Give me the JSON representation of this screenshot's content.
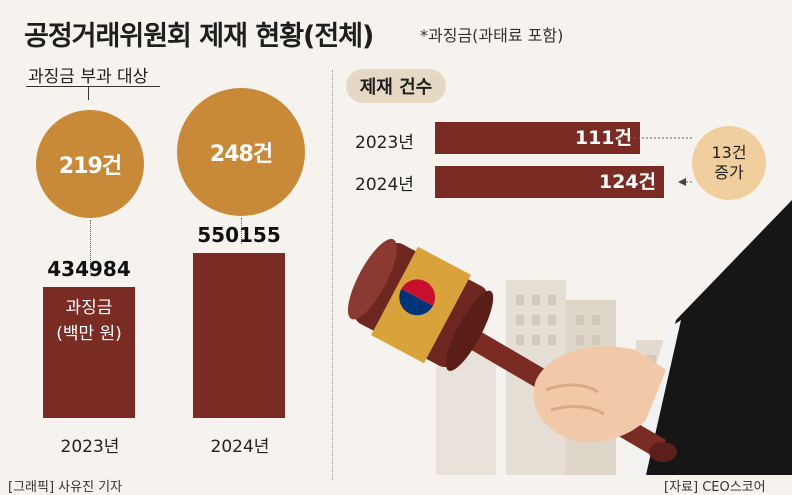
{
  "header": {
    "title": "공정거래위원회 제재 현황(전체)",
    "note": "*과징금(과태료 포함)"
  },
  "left": {
    "subtitle": "과징금 부과 대상",
    "bar_inner_label": [
      "과징금",
      "(백만 원)"
    ]
  },
  "right": {
    "title": "제재 건수",
    "diff_label": [
      "13건",
      "증가"
    ]
  },
  "footer": {
    "left": "[그래픽] 사유진 기자",
    "right": "[자료] CEO스코어"
  },
  "colors": {
    "bar": "#7a2b24",
    "circle": "#c88a38",
    "pill": "#e6d9c3",
    "diff_circle": "#f0ce9d",
    "gavel_band": "#d9a23a"
  },
  "chart_data": [
    {
      "type": "bar",
      "title": "과징금 부과 대상",
      "categories": [
        "2023년",
        "2024년"
      ],
      "series": [
        {
          "name": "과징금 부과 대상",
          "values": [
            219,
            248
          ],
          "labels": [
            "219건",
            "248건"
          ]
        },
        {
          "name": "과징금 (백만 원)",
          "values": [
            434984,
            550155
          ],
          "labels": [
            "434984",
            "550155"
          ]
        }
      ],
      "ylim": [
        0,
        600000
      ]
    },
    {
      "type": "bar",
      "orientation": "horizontal",
      "title": "제재 건수",
      "categories": [
        "2023년",
        "2024년"
      ],
      "values": [
        111,
        124
      ],
      "labels": [
        "111건",
        "124건"
      ],
      "xlim": [
        0,
        130
      ]
    }
  ]
}
